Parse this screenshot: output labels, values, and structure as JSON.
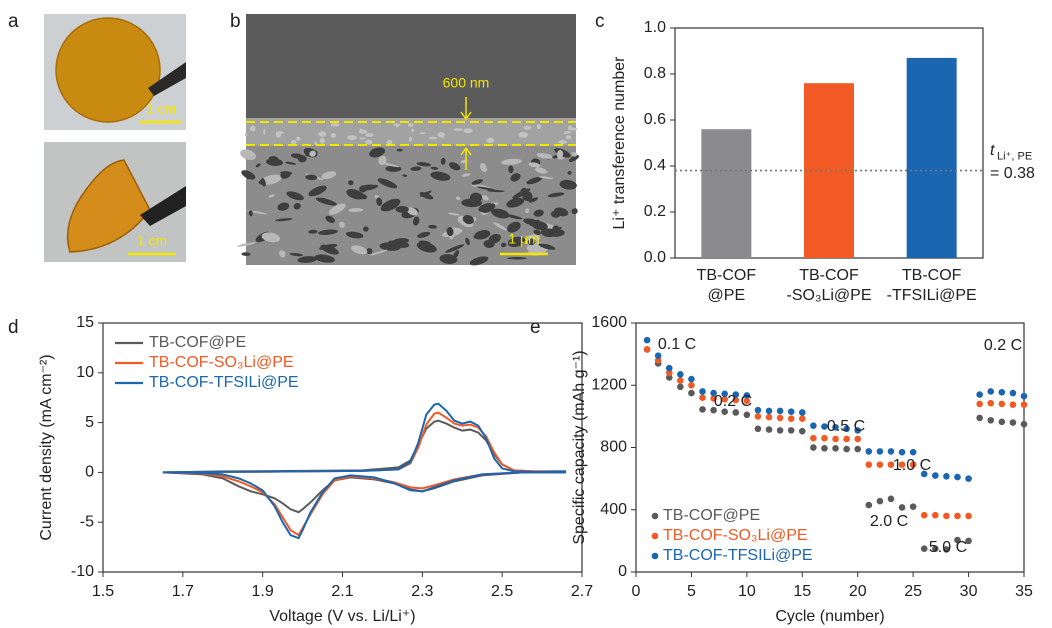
{
  "photos": {
    "panel_label": "a",
    "scale_bar_labels": [
      "1 cm",
      "1 cm"
    ]
  },
  "sem": {
    "panel_label": "b",
    "thickness_label": "600 nm",
    "scale_bar_label": "1 μm"
  },
  "chart_data": [
    {
      "type": "bar",
      "panel_label": "c",
      "y_label": "Li⁺ transference number",
      "categories": [
        [
          "TB-COF",
          "@PE"
        ],
        [
          "TB-COF",
          "-SO₃Li@PE"
        ],
        [
          "TB-COF",
          "-TFSILi@PE"
        ]
      ],
      "values": [
        0.56,
        0.76,
        0.87
      ],
      "colors": [
        "#8b8b8d",
        "#f15a24",
        "#1a66b0"
      ],
      "ylim": [
        0,
        1.0
      ],
      "yticks": [
        {
          "value": 0,
          "label": "0.0"
        },
        0.2,
        0.4,
        0.6,
        0.8,
        {
          "value": 1.0,
          "label": "1.0"
        }
      ],
      "reference": {
        "value": 0.38,
        "symbol": "t",
        "subscript": "Li⁺, PE",
        "label": "= 0.38"
      }
    },
    {
      "type": "line",
      "panel_label": "d",
      "x_label": "Voltage (V vs. Li/Li⁺)",
      "y_label": "Current density (mA cm⁻²)",
      "x": [
        2.66,
        2.55,
        2.45,
        2.38,
        2.33,
        2.3,
        2.27,
        2.23,
        2.18,
        2.12,
        2.08,
        2.05,
        2.02,
        2.0,
        1.99,
        1.97,
        1.95,
        1.93,
        1.9,
        1.87,
        1.84,
        1.8,
        1.75,
        1.65,
        1.65,
        1.8,
        2.0,
        2.15,
        2.24,
        2.27,
        2.29,
        2.31,
        2.33,
        2.34,
        2.36,
        2.38,
        2.4,
        2.42,
        2.44,
        2.46,
        2.48,
        2.5,
        2.53,
        2.58,
        2.66
      ],
      "series": [
        {
          "name": "TB-COF@PE",
          "color": "#5a5a5a",
          "values": [
            0,
            0,
            -0.3,
            -0.9,
            -1.6,
            -1.9,
            -1.7,
            -1.1,
            -0.7,
            -0.5,
            -0.8,
            -1.8,
            -3.0,
            -3.7,
            -4.0,
            -3.7,
            -3.1,
            -2.6,
            -2.2,
            -1.9,
            -1.4,
            -0.6,
            -0.2,
            0,
            0,
            0.1,
            0.15,
            0.2,
            0.5,
            1.2,
            2.8,
            4.4,
            5.1,
            5.2,
            4.9,
            4.5,
            4.2,
            4.3,
            4.0,
            3.2,
            1.8,
            0.8,
            0.2,
            0.1,
            0.1
          ]
        },
        {
          "name": "TB-COF-SO₃Li@PE",
          "color": "#f15a24",
          "values": [
            0,
            0,
            -0.2,
            -0.7,
            -1.3,
            -1.6,
            -1.5,
            -1.0,
            -0.6,
            -0.4,
            -0.8,
            -2.2,
            -4.2,
            -5.6,
            -6.3,
            -5.8,
            -4.5,
            -3.2,
            -2.0,
            -1.4,
            -0.9,
            -0.4,
            -0.1,
            0,
            0,
            0.05,
            0.1,
            0.15,
            0.3,
            0.9,
            2.5,
            4.8,
            5.9,
            6.0,
            5.5,
            4.9,
            4.7,
            4.8,
            4.5,
            3.6,
            2.0,
            0.8,
            0.2,
            0.1,
            0.1
          ]
        },
        {
          "name": "TB-COF-TFSILi@PE",
          "color": "#1a66b0",
          "values": [
            0,
            0,
            -0.2,
            -0.8,
            -1.5,
            -1.9,
            -1.8,
            -1.1,
            -0.5,
            -0.3,
            -0.6,
            -2.0,
            -4.0,
            -5.8,
            -6.6,
            -6.3,
            -5.0,
            -3.4,
            -1.8,
            -1.1,
            -0.6,
            -0.2,
            -0.05,
            0,
            0,
            0.05,
            0.1,
            0.15,
            0.3,
            1.0,
            3.0,
            5.8,
            6.8,
            6.9,
            6.2,
            5.2,
            4.9,
            5.1,
            4.7,
            3.4,
            1.4,
            0.4,
            0.1,
            0.05,
            0.1
          ]
        }
      ],
      "xlim": [
        1.5,
        2.7
      ],
      "xticks": [
        1.5,
        1.7,
        1.9,
        2.1,
        2.3,
        2.5,
        2.7
      ],
      "ylim": [
        -10,
        15
      ],
      "yticks": [
        -10,
        -5,
        0,
        5,
        10,
        15
      ],
      "legend": "upper left"
    },
    {
      "type": "scatter",
      "panel_label": "e",
      "x_label": "Cycle (number)",
      "y_label": "Specific capacity (mAh g⁻¹)",
      "x": [
        1,
        2,
        3,
        4,
        5,
        6,
        7,
        8,
        9,
        10,
        11,
        12,
        13,
        14,
        15,
        16,
        17,
        18,
        19,
        20,
        21,
        22,
        23,
        24,
        25,
        26,
        27,
        28,
        29,
        30,
        31,
        32,
        33,
        34,
        35
      ],
      "series": [
        {
          "name": "TB-COF@PE",
          "color": "#5a5a5a",
          "values": [
            1430,
            1340,
            1250,
            1190,
            1150,
            1045,
            1040,
            1030,
            1025,
            1010,
            920,
            915,
            910,
            910,
            905,
            800,
            795,
            795,
            790,
            790,
            430,
            455,
            470,
            415,
            420,
            150,
            150,
            145,
            205,
            200,
            990,
            975,
            965,
            960,
            950
          ]
        },
        {
          "name": "TB-COF-SO₃Li@PE",
          "color": "#f15a24",
          "values": [
            1430,
            1360,
            1280,
            1230,
            1200,
            1120,
            1115,
            1110,
            1105,
            1100,
            1000,
            995,
            990,
            985,
            985,
            860,
            860,
            855,
            855,
            855,
            690,
            690,
            690,
            690,
            690,
            365,
            365,
            360,
            360,
            360,
            1080,
            1085,
            1080,
            1075,
            1075
          ]
        },
        {
          "name": "TB-COF-TFSILi@PE",
          "color": "#1a66b0",
          "values": [
            1490,
            1390,
            1310,
            1270,
            1240,
            1160,
            1150,
            1145,
            1140,
            1135,
            1040,
            1035,
            1035,
            1030,
            1025,
            940,
            935,
            930,
            920,
            910,
            775,
            775,
            775,
            770,
            770,
            630,
            620,
            615,
            610,
            600,
            1140,
            1160,
            1155,
            1150,
            1130
          ]
        }
      ],
      "annotations": [
        "0.1 C",
        "0.2 C",
        "0.5 C",
        "1.0 C",
        "2.0 C",
        "5.0 C",
        "0.2 C"
      ],
      "xlim": [
        0,
        35
      ],
      "xticks": [
        0,
        5,
        10,
        15,
        20,
        25,
        30,
        35
      ],
      "ylim": [
        0,
        1600
      ],
      "yticks": [
        0,
        400,
        800,
        1200,
        1600
      ],
      "legend": "lower left"
    }
  ]
}
